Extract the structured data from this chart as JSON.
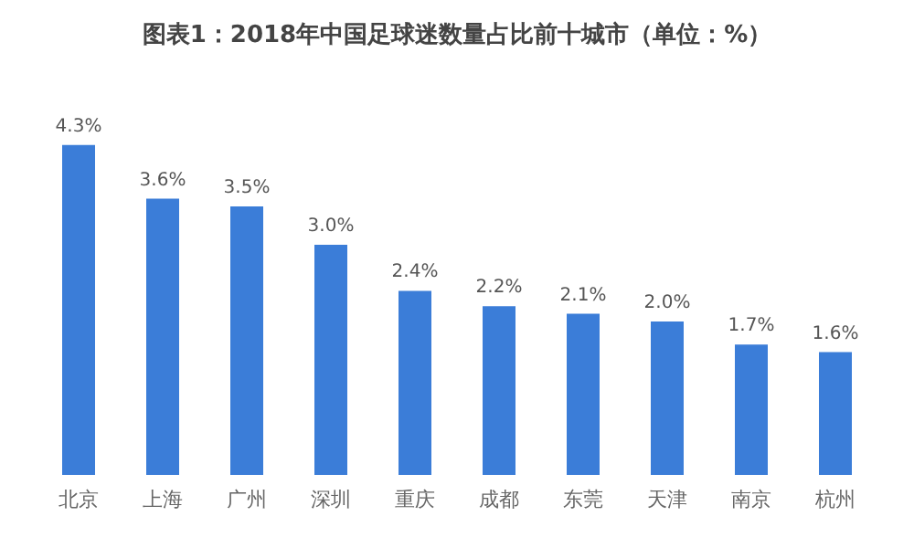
{
  "chart_data": {
    "type": "bar",
    "title": "图表1：2018年中国足球迷数量占比前十城市（单位：%）",
    "categories": [
      "北京",
      "上海",
      "广州",
      "深圳",
      "重庆",
      "成都",
      "东莞",
      "天津",
      "南京",
      "杭州"
    ],
    "values": [
      4.3,
      3.6,
      3.5,
      3.0,
      2.4,
      2.2,
      2.1,
      2.0,
      1.7,
      1.6
    ],
    "color": "#3b7dd8",
    "data_labels": true,
    "value_labels": [
      "4.3%",
      "3.6%",
      "3.5%",
      "3.0%",
      "2.4%",
      "2.2%",
      "2.1%",
      "2.0%",
      "1.7%",
      "1.6%"
    ]
  }
}
